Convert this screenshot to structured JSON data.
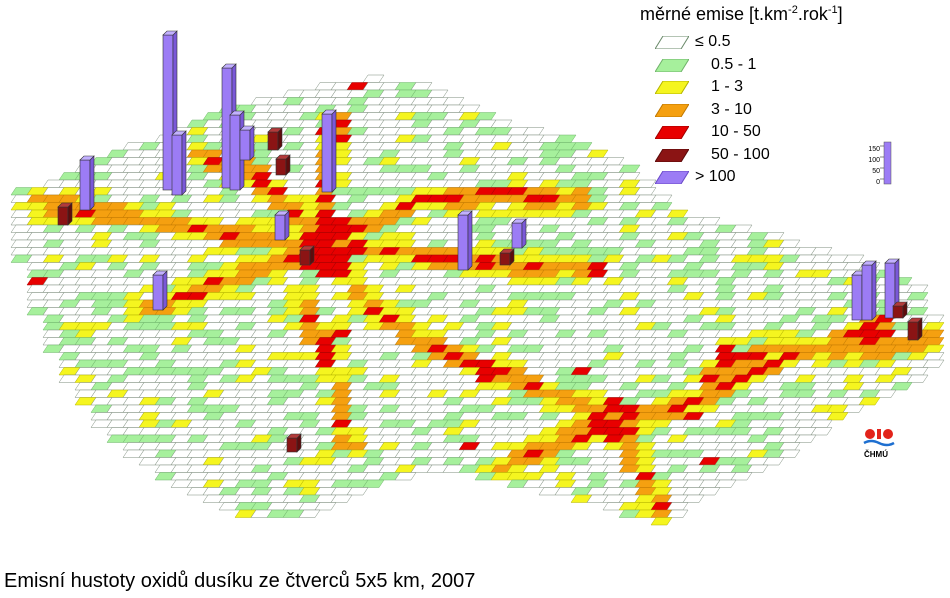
{
  "legend": {
    "title_main": "měrné emise [t.km",
    "title_exp1": "-2",
    "title_mid": ".rok",
    "title_exp2": "-1",
    "title_end": "]",
    "classes": [
      {
        "label": "≤ 0.5",
        "color": "#ffffff",
        "border": "#6a8a6a"
      },
      {
        "label": "0.5 - 1",
        "color": "#a6f09c",
        "border": "#6fb36a"
      },
      {
        "label": "1 - 3",
        "color": "#f5f51f",
        "border": "#b4b400"
      },
      {
        "label": "3 - 10",
        "color": "#f5a010",
        "border": "#c07800"
      },
      {
        "label": "10 - 50",
        "color": "#e80000",
        "border": "#a00000"
      },
      {
        "label": "50 - 100",
        "color": "#8b1414",
        "border": "#5a0a0a"
      },
      {
        "label": "> 100",
        "color": "#9c7cf5",
        "border": "#6a4ac8"
      }
    ]
  },
  "bar_scale": {
    "ticks": [
      "150",
      "100",
      "50",
      "0"
    ]
  },
  "logo": {
    "text": "ČHMÚ"
  },
  "caption": "Emisní hustoty oxidů dusíku ze čtverců 5x5 km, 2007"
}
